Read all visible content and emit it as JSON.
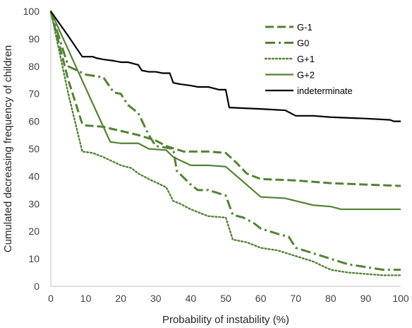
{
  "chart_data": {
    "type": "line",
    "title": "",
    "xlabel": "Probability of instability (%)",
    "ylabel": "Cumulated decreasing frequency of children",
    "xlim": [
      0,
      100
    ],
    "ylim": [
      0,
      100
    ],
    "x_ticks": [
      "0",
      "10",
      "20",
      "30",
      "40",
      "50",
      "60",
      "70",
      "80",
      "90",
      "100"
    ],
    "y_ticks": [
      "0",
      "10",
      "20",
      "30",
      "40",
      "50",
      "60",
      "70",
      "80",
      "90",
      "100"
    ],
    "grid": false,
    "legend_position": "top-right",
    "series": [
      {
        "name": "G-1",
        "color": "#548235",
        "style": "dashed",
        "x": [
          0,
          5,
          9,
          10,
          15,
          20,
          25,
          30,
          33,
          38,
          45,
          50,
          53,
          56,
          60,
          70,
          80,
          90,
          100
        ],
        "y": [
          100,
          75,
          59,
          58.5,
          58,
          56.5,
          55,
          53,
          51,
          49,
          49,
          48.5,
          45,
          41,
          39,
          38.5,
          37.5,
          37,
          36.5
        ]
      },
      {
        "name": "G0",
        "color": "#548235",
        "style": "dashdot",
        "x": [
          0,
          5,
          10,
          15,
          18,
          20,
          22,
          25,
          28,
          30,
          35,
          36,
          40,
          42,
          45,
          50,
          52,
          55,
          58,
          60,
          65,
          68,
          70,
          75,
          80,
          85,
          90,
          95,
          100
        ],
        "y": [
          100,
          80,
          77,
          76,
          70.5,
          70,
          66,
          63,
          55,
          51,
          50,
          42,
          37,
          35,
          35,
          33,
          26,
          25,
          23,
          21,
          19,
          18,
          14,
          12,
          10,
          8,
          7,
          6,
          6
        ]
      },
      {
        "name": "G+1",
        "color": "#548235",
        "style": "dotted",
        "x": [
          0,
          5,
          9,
          12,
          15,
          20,
          23,
          25,
          28,
          33,
          35,
          37,
          40,
          45,
          50,
          52,
          56,
          60,
          65,
          70,
          75,
          80,
          85,
          90,
          95,
          100
        ],
        "y": [
          100,
          70,
          49,
          48.5,
          47,
          44,
          43,
          41,
          39,
          36,
          31,
          30,
          28,
          25.5,
          25,
          17,
          16,
          14,
          13,
          11,
          9,
          6,
          5,
          4.5,
          4,
          4
        ]
      },
      {
        "name": "G+2",
        "color": "#548235",
        "style": "solid",
        "x": [
          0,
          5,
          10,
          17,
          20,
          25,
          28,
          33,
          35,
          40,
          45,
          50,
          60,
          67,
          75,
          80,
          83,
          90,
          100
        ],
        "y": [
          100,
          86,
          72,
          52.5,
          52,
          52,
          50,
          49.5,
          47,
          44,
          44,
          43.5,
          32.5,
          32,
          29.5,
          29,
          28,
          28,
          28
        ]
      },
      {
        "name": "indeterminate",
        "color": "#000000",
        "style": "solid",
        "x": [
          0,
          5,
          9,
          12,
          13,
          15,
          18,
          20,
          22,
          25,
          26,
          28,
          30,
          32,
          34,
          35,
          37,
          40,
          42,
          45,
          48,
          50,
          51,
          60,
          67,
          70,
          75,
          80,
          90,
          97,
          98,
          100
        ],
        "y": [
          100,
          91,
          83.5,
          83.5,
          83,
          82.5,
          82,
          81.5,
          81.5,
          80.5,
          78.5,
          78,
          78,
          77.5,
          77.5,
          74,
          73.5,
          73,
          72.5,
          72.5,
          71.5,
          71.5,
          65,
          64.5,
          64,
          62,
          62,
          61.5,
          61,
          60.5,
          60,
          60
        ]
      }
    ]
  }
}
